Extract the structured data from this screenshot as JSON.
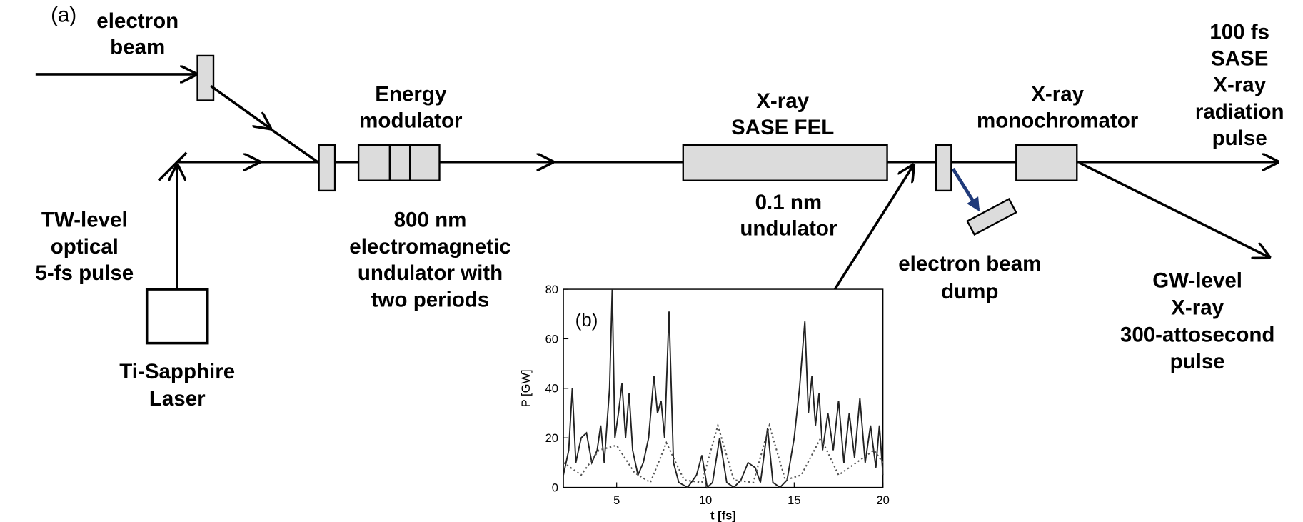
{
  "panel_label": "(a)",
  "labels": {
    "electron_beam": [
      "electron",
      "beam"
    ],
    "energy_modulator": [
      "Energy",
      "modulator"
    ],
    "sase_fel": [
      "X-ray",
      "SASE FEL"
    ],
    "monochromator": [
      "X-ray",
      "monochromator"
    ],
    "sase_pulse": [
      "100 fs",
      "SASE",
      "X-ray",
      "radiation",
      "pulse"
    ],
    "optical_pulse": [
      "TW-level",
      "optical",
      "5-fs pulse"
    ],
    "modulator_undulator": [
      "800 nm",
      "electromagnetic",
      "undulator with",
      "two periods"
    ],
    "fel_undulator": [
      "0.1 nm",
      "undulator"
    ],
    "beam_dump": [
      "electron beam",
      "dump"
    ],
    "attosecond_pulse": [
      "GW-level",
      "X-ray",
      "300-attosecond",
      "pulse"
    ],
    "laser": [
      "Ti-Sapphire",
      "Laser"
    ]
  },
  "chart_data": {
    "type": "line",
    "panel_label": "(b)",
    "x_label": "t  [fs]",
    "y_label": "P [GW]",
    "xlim": [
      2,
      20
    ],
    "ylim": [
      0,
      80
    ],
    "xticks": [
      5,
      10,
      15,
      20
    ],
    "yticks": [
      0,
      20,
      40,
      60,
      80
    ],
    "series": [
      {
        "color": "#222222",
        "dash": "solid",
        "x": [
          2.0,
          2.3,
          2.5,
          2.7,
          3.0,
          3.3,
          3.6,
          3.9,
          4.1,
          4.3,
          4.6,
          4.75,
          4.9,
          5.1,
          5.3,
          5.5,
          5.7,
          5.9,
          6.2,
          6.5,
          6.8,
          7.1,
          7.3,
          7.5,
          7.7,
          7.95,
          8.2,
          8.5,
          9.0,
          9.5,
          9.8,
          10.1,
          10.4,
          10.8,
          11.2,
          11.6,
          12.0,
          12.4,
          12.8,
          13.1,
          13.5,
          13.8,
          14.2,
          14.6,
          15.0,
          15.3,
          15.6,
          15.8,
          16.0,
          16.2,
          16.4,
          16.6,
          16.9,
          17.2,
          17.5,
          17.8,
          18.1,
          18.4,
          18.7,
          19.0,
          19.3,
          19.6,
          19.8,
          20.0
        ],
        "values": [
          5,
          15,
          40,
          10,
          20,
          22,
          10,
          15,
          25,
          10,
          40,
          80,
          20,
          30,
          42,
          20,
          38,
          15,
          5,
          10,
          20,
          45,
          30,
          35,
          20,
          71,
          10,
          2,
          0,
          5,
          13,
          0,
          2,
          20,
          2,
          0,
          3,
          10,
          8,
          2,
          24,
          2,
          0,
          3,
          20,
          40,
          67,
          30,
          45,
          25,
          38,
          15,
          30,
          15,
          35,
          10,
          30,
          12,
          36,
          10,
          25,
          8,
          25,
          5
        ]
      },
      {
        "color": "#555555",
        "dash": "dotted",
        "x": [
          2,
          3,
          4,
          5,
          6,
          6.9,
          7.8,
          8.8,
          9.8,
          10.7,
          11.6,
          12.7,
          13.6,
          14.5,
          15.4,
          16.5,
          17.5,
          18.5,
          19.5,
          20
        ],
        "values": [
          10,
          5,
          15,
          17,
          6,
          2,
          18,
          3,
          2,
          25,
          3,
          2,
          25,
          3,
          5,
          20,
          5,
          10,
          15,
          10
        ]
      }
    ]
  }
}
